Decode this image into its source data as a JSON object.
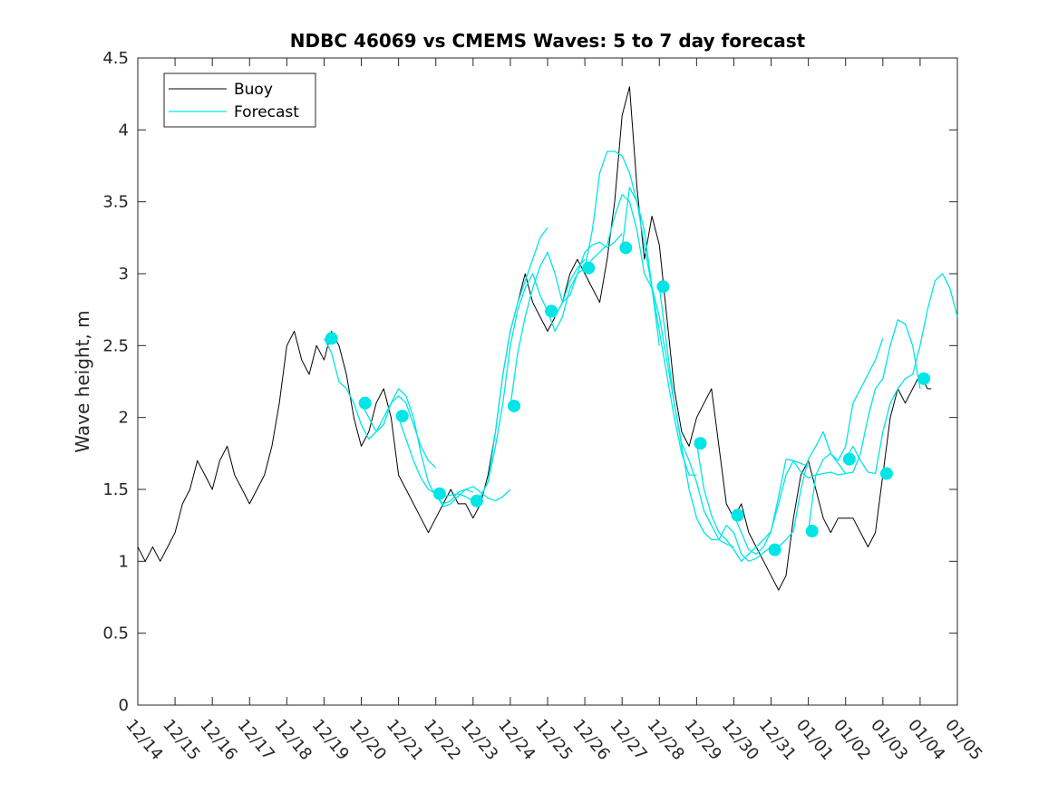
{
  "chart_data": {
    "type": "line",
    "title": "NDBC 46069 vs CMEMS Waves: 5 to 7 day forecast",
    "xlabel": "",
    "ylabel": "Wave height, m",
    "xlim": [
      0,
      22
    ],
    "ylim": [
      0,
      4.5
    ],
    "x_tick_labels": [
      "12/14",
      "12/15",
      "12/16",
      "12/17",
      "12/18",
      "12/19",
      "12/20",
      "12/21",
      "12/22",
      "12/23",
      "12/24",
      "12/25",
      "12/26",
      "12/27",
      "12/28",
      "12/29",
      "12/30",
      "12/31",
      "01/01",
      "01/02",
      "01/03",
      "01/04",
      "01/05"
    ],
    "y_tick_labels": [
      "0",
      "0.5",
      "1",
      "1.5",
      "2",
      "2.5",
      "3",
      "3.5",
      "4",
      "4.5"
    ],
    "y_ticks": [
      0,
      0.5,
      1,
      1.5,
      2,
      2.5,
      3,
      3.5,
      4,
      4.5
    ],
    "legend": {
      "position": "top-left",
      "entries": [
        {
          "name": "Buoy",
          "color": "#000000"
        },
        {
          "name": "Forecast",
          "color": "#00e5e5"
        }
      ]
    },
    "colors": {
      "buoy": "#000000",
      "forecast": "#00e5e5"
    },
    "series": [
      {
        "name": "Buoy",
        "x": [
          0,
          0.2,
          0.4,
          0.6,
          0.8,
          1.0,
          1.2,
          1.4,
          1.6,
          1.8,
          2.0,
          2.2,
          2.4,
          2.6,
          2.8,
          3.0,
          3.2,
          3.4,
          3.6,
          3.8,
          4.0,
          4.2,
          4.4,
          4.6,
          4.8,
          5.0,
          5.2,
          5.4,
          5.6,
          5.8,
          6.0,
          6.2,
          6.4,
          6.6,
          6.8,
          7.0,
          7.2,
          7.4,
          7.6,
          7.8,
          8.0,
          8.2,
          8.4,
          8.6,
          8.8,
          9.0,
          9.2,
          9.4,
          9.6,
          9.8,
          10.0,
          10.2,
          10.4,
          10.6,
          10.8,
          11.0,
          11.2,
          11.4,
          11.6,
          11.8,
          12.0,
          12.2,
          12.4,
          12.6,
          12.8,
          13.0,
          13.2,
          13.4,
          13.6,
          13.8,
          14.0,
          14.2,
          14.4,
          14.6,
          14.8,
          15.0,
          15.2,
          15.4,
          15.6,
          15.8,
          16.0,
          16.2,
          16.4,
          16.6,
          16.8,
          17.0,
          17.2,
          17.4,
          17.6,
          17.8,
          18.0,
          18.2,
          18.4,
          18.6,
          18.8,
          19.0,
          19.2,
          19.4,
          19.6,
          19.8,
          20.0,
          20.2,
          20.4,
          20.6,
          20.8,
          21.0,
          21.2,
          21.3
        ],
        "y": [
          1.1,
          1.0,
          1.1,
          1.0,
          1.1,
          1.2,
          1.4,
          1.5,
          1.7,
          1.6,
          1.5,
          1.7,
          1.8,
          1.6,
          1.5,
          1.4,
          1.5,
          1.6,
          1.8,
          2.1,
          2.5,
          2.6,
          2.4,
          2.3,
          2.5,
          2.4,
          2.6,
          2.5,
          2.3,
          2.0,
          1.8,
          1.9,
          2.1,
          2.2,
          2.0,
          1.6,
          1.5,
          1.4,
          1.3,
          1.2,
          1.3,
          1.4,
          1.5,
          1.4,
          1.4,
          1.3,
          1.4,
          1.6,
          1.9,
          2.3,
          2.6,
          2.8,
          3.0,
          2.8,
          2.7,
          2.6,
          2.7,
          2.8,
          3.0,
          3.1,
          3.0,
          2.9,
          2.8,
          3.1,
          3.5,
          4.1,
          4.3,
          3.6,
          3.1,
          3.4,
          3.2,
          2.7,
          2.2,
          1.9,
          1.8,
          2.0,
          2.1,
          2.2,
          1.8,
          1.4,
          1.3,
          1.4,
          1.2,
          1.1,
          1.0,
          0.9,
          0.8,
          0.9,
          1.3,
          1.6,
          1.7,
          1.5,
          1.3,
          1.2,
          1.3,
          1.3,
          1.3,
          1.2,
          1.1,
          1.2,
          1.6,
          2.0,
          2.2,
          2.1,
          2.2,
          2.3,
          2.2,
          2.2
        ]
      },
      {
        "name": "Forecast run 12/19",
        "x": [
          5.0,
          5.2,
          5.4,
          5.6,
          5.8,
          6.0,
          6.2,
          6.4,
          6.6,
          6.8,
          7.0,
          7.2,
          7.4,
          7.6,
          7.8,
          8.0
        ],
        "y": [
          2.55,
          2.45,
          2.25,
          2.2,
          2.1,
          1.95,
          1.85,
          1.9,
          2.0,
          2.1,
          2.15,
          2.1,
          1.95,
          1.8,
          1.7,
          1.65
        ]
      },
      {
        "name": "Forecast run 12/20",
        "x": [
          6.0,
          6.2,
          6.4,
          6.6,
          6.8,
          7.0,
          7.2,
          7.4,
          7.6,
          7.8,
          8.0,
          8.2,
          8.4,
          8.6,
          8.8,
          9.0
        ],
        "y": [
          2.1,
          2.0,
          1.9,
          1.95,
          2.1,
          2.2,
          2.15,
          2.0,
          1.75,
          1.55,
          1.45,
          1.4,
          1.42,
          1.48,
          1.5,
          1.48
        ]
      },
      {
        "name": "Forecast run 12/21",
        "x": [
          7.0,
          7.2,
          7.4,
          7.6,
          7.8,
          8.0,
          8.2,
          8.4,
          8.6,
          8.8,
          9.0,
          9.2,
          9.4,
          9.6,
          9.8,
          10.0
        ],
        "y": [
          2.0,
          1.85,
          1.7,
          1.58,
          1.5,
          1.47,
          1.38,
          1.4,
          1.45,
          1.5,
          1.52,
          1.48,
          1.44,
          1.42,
          1.45,
          1.5
        ]
      },
      {
        "name": "Forecast run 12/22",
        "x": [
          8.0,
          8.2,
          8.4,
          8.6,
          8.8,
          9.0,
          9.2,
          9.4,
          9.6,
          9.8,
          10.0,
          10.2,
          10.4,
          10.6,
          10.8,
          11.0
        ],
        "y": [
          1.46,
          1.45,
          1.46,
          1.47,
          1.45,
          1.42,
          1.45,
          1.55,
          1.9,
          2.3,
          2.6,
          2.8,
          2.95,
          3.1,
          3.25,
          3.32
        ]
      },
      {
        "name": "Forecast run 12/23",
        "x": [
          9.0,
          9.2,
          9.4,
          9.6,
          9.8,
          10.0,
          10.2,
          10.4,
          10.6,
          10.8,
          11.0,
          11.2,
          11.4,
          11.6,
          11.8,
          12.0
        ],
        "y": [
          1.42,
          1.45,
          1.55,
          1.8,
          2.1,
          2.5,
          2.75,
          2.9,
          3.0,
          2.85,
          2.74,
          2.7,
          2.8,
          2.95,
          3.04,
          3.1
        ]
      },
      {
        "name": "Forecast run 12/24",
        "x": [
          10.0,
          10.2,
          10.4,
          10.6,
          10.8,
          11.0,
          11.2,
          11.4,
          11.6,
          11.8,
          12.0,
          12.2,
          12.4,
          12.6,
          12.8,
          13.0
        ],
        "y": [
          2.08,
          2.45,
          2.7,
          2.9,
          3.05,
          3.15,
          3.0,
          2.8,
          2.85,
          3.0,
          3.15,
          3.2,
          3.22,
          3.18,
          3.22,
          3.28
        ]
      },
      {
        "name": "Forecast run 12/25",
        "x": [
          11.0,
          11.2,
          11.4,
          11.6,
          11.8,
          12.0,
          12.2,
          12.4,
          12.6,
          12.8,
          13.0,
          13.2,
          13.4,
          13.6,
          13.8,
          14.0
        ],
        "y": [
          2.74,
          2.6,
          2.7,
          2.9,
          3.0,
          3.04,
          3.3,
          3.7,
          3.85,
          3.85,
          3.82,
          3.7,
          3.5,
          3.2,
          2.9,
          2.5
        ]
      },
      {
        "name": "Forecast run 12/26",
        "x": [
          12.0,
          12.2,
          12.4,
          12.6,
          12.8,
          13.0,
          13.2,
          13.4,
          13.6,
          13.8,
          14.0,
          14.2,
          14.4,
          14.6,
          14.8,
          15.0
        ],
        "y": [
          3.04,
          3.1,
          3.15,
          3.2,
          3.4,
          3.55,
          3.5,
          3.3,
          3.0,
          2.9,
          2.6,
          2.3,
          2.0,
          1.75,
          1.6,
          1.6
        ]
      },
      {
        "name": "Forecast run 12/27",
        "x": [
          13.0,
          13.2,
          13.4,
          13.6,
          13.8,
          14.0,
          14.2,
          14.4,
          14.6,
          14.8,
          15.0,
          15.2,
          15.4,
          15.6,
          15.8,
          16.0
        ],
        "y": [
          3.18,
          3.6,
          3.5,
          3.3,
          2.91,
          2.7,
          2.4,
          2.1,
          1.82,
          1.7,
          1.55,
          1.35,
          1.25,
          1.15,
          1.12,
          1.1
        ]
      },
      {
        "name": "Forecast run 12/28",
        "x": [
          14.0,
          14.2,
          14.4,
          14.6,
          14.8,
          15.0,
          15.2,
          15.4,
          15.6,
          15.8,
          16.0,
          16.2,
          16.4,
          16.6,
          16.8,
          17.0
        ],
        "y": [
          2.91,
          2.5,
          2.1,
          1.8,
          1.5,
          1.3,
          1.2,
          1.15,
          1.15,
          1.25,
          1.2,
          1.05,
          1.0,
          1.02,
          1.06,
          1.1
        ]
      },
      {
        "name": "Forecast run 12/29",
        "x": [
          15.0,
          15.2,
          15.4,
          15.6,
          15.8,
          16.0,
          16.2,
          16.4,
          16.6,
          16.8,
          17.0,
          17.2,
          17.4,
          17.6,
          17.8,
          18.0
        ],
        "y": [
          1.82,
          1.5,
          1.32,
          1.2,
          1.15,
          1.08,
          1.0,
          1.05,
          1.1,
          1.15,
          1.21,
          1.4,
          1.6,
          1.7,
          1.68,
          1.66
        ]
      },
      {
        "name": "Forecast run 12/30",
        "x": [
          16.0,
          16.2,
          16.4,
          16.6,
          16.8,
          17.0,
          17.2,
          17.4,
          17.6,
          17.8,
          18.0,
          18.2,
          18.4,
          18.6,
          18.8,
          19.0
        ],
        "y": [
          1.32,
          1.2,
          1.08,
          1.05,
          1.1,
          1.21,
          1.45,
          1.71,
          1.7,
          1.62,
          1.58,
          1.6,
          1.61,
          1.62,
          1.6,
          1.61
        ]
      },
      {
        "name": "Forecast run 12/31",
        "x": [
          17.0,
          17.2,
          17.4,
          17.6,
          17.8,
          18.0,
          18.2,
          18.4,
          18.6,
          18.8,
          19.0,
          19.2,
          19.4,
          19.6,
          19.8,
          20.0
        ],
        "y": [
          1.08,
          1.1,
          1.15,
          1.21,
          1.5,
          1.71,
          1.8,
          1.9,
          1.75,
          1.7,
          1.8,
          2.1,
          2.2,
          2.3,
          2.4,
          2.55
        ]
      },
      {
        "name": "Forecast run 01/01",
        "x": [
          18.0,
          18.2,
          18.4,
          18.6,
          18.8,
          19.0,
          19.2,
          19.4,
          19.6,
          19.8,
          20.0,
          20.2,
          20.4,
          20.6,
          20.8,
          21.0
        ],
        "y": [
          1.21,
          1.6,
          1.71,
          1.75,
          1.68,
          1.61,
          1.62,
          1.75,
          2.0,
          2.2,
          2.27,
          2.5,
          2.68,
          2.65,
          2.5,
          2.2
        ]
      },
      {
        "name": "Forecast run 01/02",
        "x": [
          19.0,
          19.2,
          19.4,
          19.6,
          19.8,
          20.0,
          20.2,
          20.4,
          20.6,
          20.8,
          21.0,
          21.2,
          21.4,
          21.6,
          21.8,
          22.0
        ],
        "y": [
          1.71,
          1.8,
          1.7,
          1.62,
          1.61,
          1.9,
          2.1,
          2.2,
          2.27,
          2.3,
          2.5,
          2.75,
          2.95,
          3.0,
          2.9,
          2.7
        ]
      }
    ],
    "markers": {
      "name": "Forecast start points",
      "x": [
        5.2,
        6.1,
        7.1,
        8.1,
        9.1,
        10.1,
        11.1,
        12.1,
        13.1,
        14.1,
        15.1,
        16.1,
        17.1,
        18.1,
        19.1,
        20.1,
        21.1
      ],
      "y": [
        2.55,
        2.1,
        2.01,
        1.47,
        1.42,
        2.08,
        2.74,
        3.04,
        3.18,
        2.91,
        1.82,
        1.32,
        1.08,
        1.21,
        1.71,
        1.61,
        2.27
      ]
    }
  }
}
